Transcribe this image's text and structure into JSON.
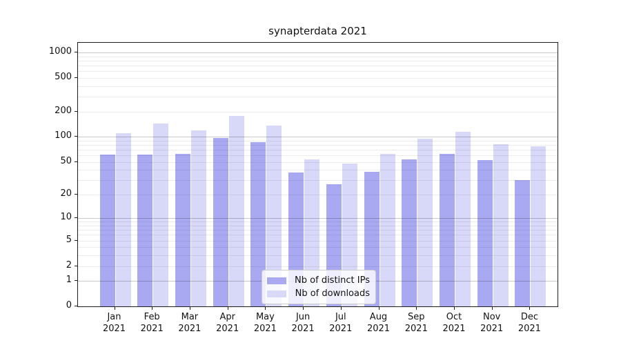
{
  "chart_data": {
    "type": "bar",
    "title": "synapterdata 2021",
    "categories": [
      "Jan 2021",
      "Feb 2021",
      "Mar 2021",
      "Apr 2021",
      "May 2021",
      "Jun 2021",
      "Jul 2021",
      "Aug 2021",
      "Sep 2021",
      "Oct 2021",
      "Nov 2021",
      "Dec 2021"
    ],
    "series": [
      {
        "name": "Nb of distinct IPs",
        "color": "#a9a9f2",
        "values": [
          61,
          61,
          63,
          96,
          86,
          37,
          27,
          38,
          54,
          63,
          53,
          30
        ]
      },
      {
        "name": "Nb of downloads",
        "color": "#d8d8f8",
        "values": [
          111,
          143,
          118,
          176,
          136,
          54,
          48,
          62,
          95,
          115,
          81,
          77
        ]
      }
    ],
    "xlabel": "",
    "ylabel": "",
    "y_scale": "log1p",
    "y_ticks": [
      0,
      1,
      2,
      5,
      10,
      20,
      50,
      100,
      200,
      500,
      1000
    ],
    "y_major_gridlines": [
      1,
      10,
      100,
      1000
    ],
    "ylim": [
      0,
      1300
    ],
    "grid": "horizontal, minor + major, drawn over bars",
    "legend_position": "lower center",
    "colors": {
      "bar_distinct_ips": "#a9a9f2",
      "bar_downloads": "#d8d8f8",
      "grid_minor": "#ececec",
      "grid_major": "#c6c6c6",
      "axis_spine": "#1b1b1b",
      "background": "#ffffff",
      "text": "#111111"
    }
  }
}
